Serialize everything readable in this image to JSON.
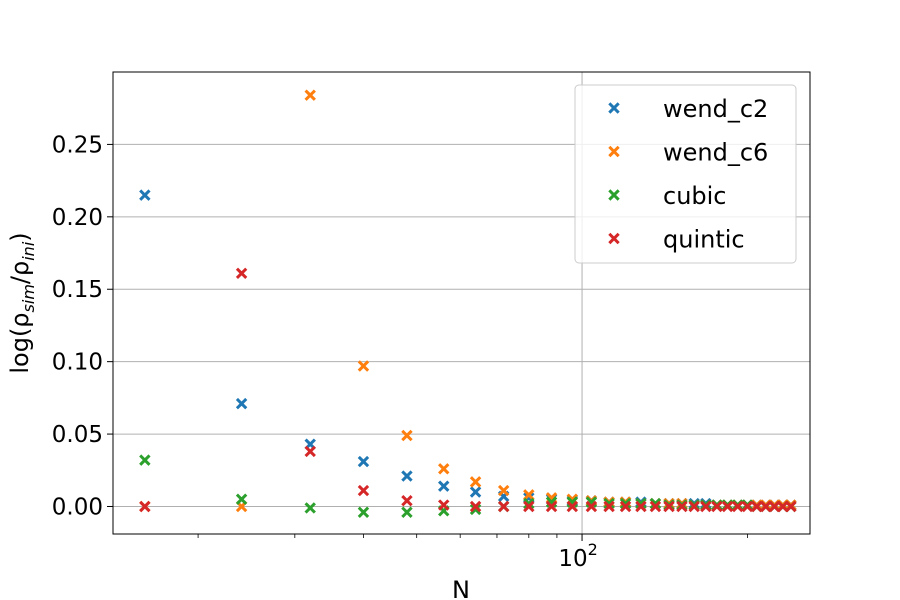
{
  "chart_data": {
    "type": "scatter",
    "title": "",
    "xlabel": "N",
    "ylabel": "log(ρsim/ρini)",
    "ylabel_parts": {
      "prefix": "log(ρ",
      "sub1": "sim",
      "mid": "/ρ",
      "sub2": "ini",
      "suffix": ")"
    },
    "xscale": "log",
    "xlim": [
      14,
      260
    ],
    "ylim": [
      -0.019,
      0.3
    ],
    "x_major_ticks": [
      {
        "value": 100,
        "base": "10",
        "exp": "2"
      }
    ],
    "y_ticks": [
      {
        "value": 0.0,
        "label": "0.00"
      },
      {
        "value": 0.05,
        "label": "0.05"
      },
      {
        "value": 0.1,
        "label": "0.10"
      },
      {
        "value": 0.15,
        "label": "0.15"
      },
      {
        "value": 0.2,
        "label": "0.20"
      },
      {
        "value": 0.25,
        "label": "0.25"
      }
    ],
    "grid": true,
    "marker": "x",
    "legend_position": "top-right",
    "x": [
      16,
      24,
      32,
      40,
      48,
      56,
      64,
      72,
      80,
      88,
      96,
      104,
      112,
      120,
      128,
      136,
      144,
      152,
      160,
      168,
      176,
      184,
      192,
      200,
      208,
      216,
      224,
      232,
      240
    ],
    "series": [
      {
        "name": "wend_c2",
        "color": "#1f77b4",
        "values": [
          0.215,
          0.071,
          0.043,
          0.031,
          0.021,
          0.014,
          0.01,
          0.007,
          0.006,
          0.005,
          0.004,
          0.004,
          0.003,
          0.003,
          0.003,
          0.002,
          0.002,
          0.002,
          0.002,
          0.002,
          0.001,
          0.001,
          0.001,
          0.001,
          0.001,
          0.001,
          0.001,
          0.001,
          0.001
        ]
      },
      {
        "name": "wend_c6",
        "color": "#ff7f0e",
        "values": [
          0.0,
          0.0,
          0.284,
          0.097,
          0.049,
          0.026,
          0.017,
          0.011,
          0.008,
          0.006,
          0.005,
          0.004,
          0.003,
          0.003,
          0.002,
          0.002,
          0.002,
          0.002,
          0.001,
          0.001,
          0.001,
          0.001,
          0.001,
          0.001,
          0.001,
          0.001,
          0.001,
          0.001,
          0.001
        ]
      },
      {
        "name": "cubic",
        "color": "#2ca02c",
        "values": [
          0.032,
          0.005,
          -0.001,
          -0.004,
          -0.004,
          -0.003,
          -0.002,
          0.0,
          0.002,
          0.003,
          0.003,
          0.003,
          0.002,
          0.002,
          0.002,
          0.002,
          0.001,
          0.001,
          0.001,
          0.001,
          0.001,
          0.001,
          0.001,
          0.001,
          0.0,
          0.0,
          0.0,
          0.0,
          0.0
        ]
      },
      {
        "name": "quintic",
        "color": "#d62728",
        "values": [
          0.0,
          0.161,
          0.038,
          0.011,
          0.004,
          0.001,
          0.0,
          0.0,
          0.0,
          0.0,
          0.0,
          0.0,
          0.0,
          0.0,
          0.0,
          0.0,
          0.0,
          0.0,
          0.0,
          0.0,
          0.0,
          0.0,
          0.0,
          0.0,
          0.0,
          0.0,
          0.0,
          0.0,
          0.0
        ]
      }
    ]
  }
}
